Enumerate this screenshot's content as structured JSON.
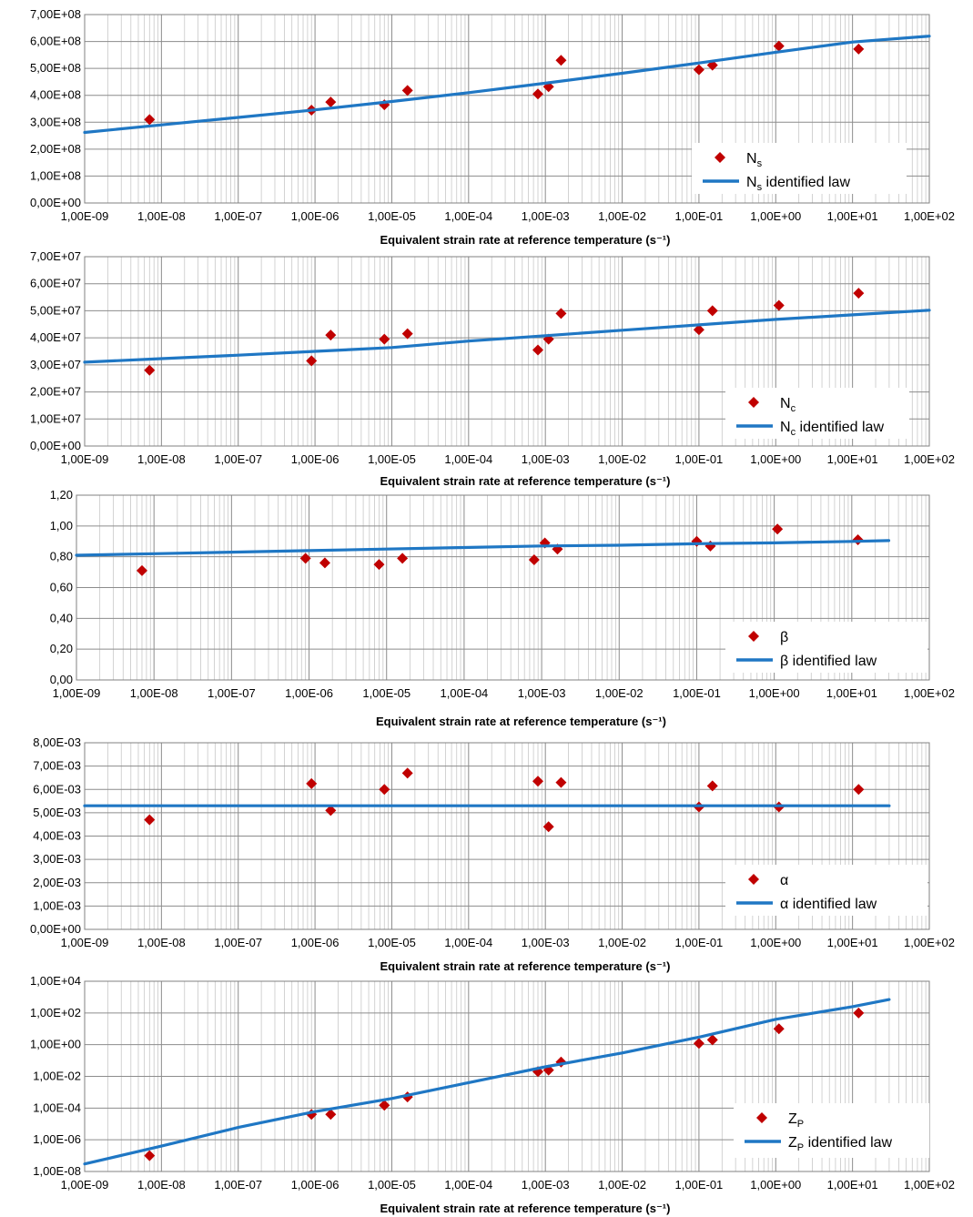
{
  "chart_data": [
    {
      "type": "scatter",
      "xscale": "log",
      "xlim": [
        1e-09,
        100
      ],
      "ylim": [
        0,
        700000000
      ],
      "yscale": "linear",
      "grid": true,
      "legend_position": "bottom-right",
      "xlabel": "Equivalent strain rate at reference temperature (s⁻¹)",
      "x_tick_labels": [
        "1,00E-09",
        "1,00E-08",
        "1,00E-07",
        "1,00E-06",
        "1,00E-05",
        "1,00E-04",
        "1,00E-03",
        "1,00E-02",
        "1,00E-01",
        "1,00E+00",
        "1,00E+01",
        "1,00E+02"
      ],
      "y_tick_labels": [
        "0,00E+00",
        "1,00E+08",
        "2,00E+08",
        "3,00E+08",
        "4,00E+08",
        "5,00E+08",
        "6,00E+08",
        "7,00E+08"
      ],
      "series": [
        {
          "name": "N",
          "name_sub": "s",
          "kind": "points",
          "color": "#c00000",
          "x": [
            7e-09,
            9e-07,
            1.6e-06,
            8e-06,
            1.6e-05,
            0.0008,
            0.0011,
            0.0016,
            0.1,
            0.15,
            1.1,
            12
          ],
          "y": [
            310000000,
            345000000,
            375000000,
            365000000,
            418000000,
            405000000,
            432000000,
            530000000,
            495000000,
            512000000,
            583000000,
            572000000
          ]
        },
        {
          "name": "N",
          "name_sub": "s",
          "name_suffix": " identified law",
          "kind": "line",
          "color": "#1f77c4",
          "x": [
            1e-09,
            1e-08,
            1e-07,
            1e-06,
            1e-05,
            0.0001,
            0.001,
            0.01,
            0.1,
            1,
            10,
            100
          ],
          "y": [
            262000000,
            290000000,
            318000000,
            346000000,
            377000000,
            410000000,
            445000000,
            482000000,
            520000000,
            560000000,
            598000000,
            620000000
          ]
        }
      ]
    },
    {
      "type": "scatter",
      "xscale": "log",
      "xlim": [
        1e-09,
        100
      ],
      "ylim": [
        0,
        70000000
      ],
      "yscale": "linear",
      "grid": true,
      "legend_position": "bottom-right",
      "xlabel": "Equivalent strain rate at reference temperature (s⁻¹)",
      "x_tick_labels": [
        "1,00E-09",
        "1,00E-08",
        "1,00E-07",
        "1,00E-06",
        "1,00E-05",
        "1,00E-04",
        "1,00E-03",
        "1,00E-02",
        "1,00E-01",
        "1,00E+00",
        "1,00E+01",
        "1,00E+02"
      ],
      "y_tick_labels": [
        "0,00E+00",
        "1,00E+07",
        "2,00E+07",
        "3,00E+07",
        "4,00E+07",
        "5,00E+07",
        "6,00E+07",
        "7,00E+07"
      ],
      "series": [
        {
          "name": "N",
          "name_sub": "c",
          "kind": "points",
          "color": "#c00000",
          "x": [
            7e-09,
            9e-07,
            1.6e-06,
            8e-06,
            1.6e-05,
            0.0008,
            0.0011,
            0.0016,
            0.1,
            0.15,
            1.1,
            12
          ],
          "y": [
            28000000,
            31500000,
            41000000,
            39500000,
            41500000,
            35500000,
            39500000,
            49000000,
            43000000,
            50000000,
            52000000,
            56500000
          ]
        },
        {
          "name": "N",
          "name_sub": "c",
          "name_suffix": " identified law",
          "kind": "line",
          "color": "#1f77c4",
          "x": [
            1e-09,
            1e-08,
            1e-07,
            1e-06,
            1e-05,
            0.0001,
            0.001,
            0.01,
            0.1,
            1,
            10,
            100
          ],
          "y": [
            31000000,
            32300000,
            33600000,
            35000000,
            36400000,
            38800000,
            40800000,
            42800000,
            44800000,
            46800000,
            48500000,
            50200000
          ]
        }
      ]
    },
    {
      "type": "scatter",
      "xscale": "log",
      "xlim": [
        1e-09,
        100
      ],
      "ylim": [
        0,
        1.2
      ],
      "yscale": "linear",
      "grid": true,
      "legend_position": "bottom-right",
      "xlabel": "Equivalent strain rate at reference temperature (s⁻¹)",
      "x_tick_labels": [
        "1,00E-09",
        "1,00E-08",
        "1,00E-07",
        "1,00E-06",
        "1,00E-05",
        "1,00E-04",
        "1,00E-03",
        "1,00E-02",
        "1,00E-01",
        "1,00E+00",
        "1,00E+01",
        "1,00E+02"
      ],
      "y_tick_labels": [
        "0,00",
        "0,20",
        "0,40",
        "0,60",
        "0,80",
        "1,00",
        "1,20"
      ],
      "series": [
        {
          "name": "β",
          "kind": "points",
          "color": "#c00000",
          "x": [
            7e-09,
            9e-07,
            1.6e-06,
            8e-06,
            1.6e-05,
            0.0008,
            0.0011,
            0.0016,
            0.1,
            0.15,
            1.1,
            12
          ],
          "y": [
            0.71,
            0.79,
            0.76,
            0.75,
            0.79,
            0.78,
            0.89,
            0.85,
            0.9,
            0.87,
            0.98,
            0.91
          ]
        },
        {
          "name": "β",
          "name_suffix": " identified law",
          "kind": "line",
          "color": "#1f77c4",
          "x": [
            1e-09,
            1e-08,
            1e-07,
            1e-06,
            1e-05,
            0.0001,
            0.001,
            0.01,
            0.1,
            1,
            10,
            30
          ],
          "y": [
            0.81,
            0.82,
            0.83,
            0.84,
            0.85,
            0.86,
            0.87,
            0.875,
            0.885,
            0.89,
            0.9,
            0.905
          ]
        }
      ]
    },
    {
      "type": "scatter",
      "xscale": "log",
      "xlim": [
        1e-09,
        100
      ],
      "ylim": [
        0,
        0.008
      ],
      "yscale": "linear",
      "grid": true,
      "legend_position": "bottom-right",
      "xlabel": "Equivalent strain rate at reference temperature (s⁻¹)",
      "x_tick_labels": [
        "1,00E-09",
        "1,00E-08",
        "1,00E-07",
        "1,00E-06",
        "1,00E-05",
        "1,00E-04",
        "1,00E-03",
        "1,00E-02",
        "1,00E-01",
        "1,00E+00",
        "1,00E+01",
        "1,00E+02"
      ],
      "y_tick_labels": [
        "0,00E+00",
        "1,00E-03",
        "2,00E-03",
        "3,00E-03",
        "4,00E-03",
        "5,00E-03",
        "6,00E-03",
        "7,00E-03",
        "8,00E-03"
      ],
      "series": [
        {
          "name": "α",
          "kind": "points",
          "color": "#c00000",
          "x": [
            7e-09,
            9e-07,
            1.6e-06,
            8e-06,
            1.6e-05,
            0.0008,
            0.0011,
            0.0016,
            0.1,
            0.15,
            1.1,
            12
          ],
          "y": [
            0.0047,
            0.00625,
            0.0051,
            0.006,
            0.0067,
            0.00635,
            0.0044,
            0.0063,
            0.00525,
            0.00615,
            0.00525,
            0.006
          ]
        },
        {
          "name": "α",
          "name_suffix": " identified law",
          "kind": "line",
          "color": "#1f77c4",
          "x": [
            1e-09,
            30
          ],
          "y": [
            0.0053,
            0.0053
          ]
        }
      ]
    },
    {
      "type": "scatter",
      "xscale": "log",
      "xlim": [
        1e-09,
        100
      ],
      "ylim": [
        1e-08,
        10000
      ],
      "yscale": "log",
      "grid": true,
      "legend_position": "bottom-right",
      "xlabel": "Equivalent strain rate at reference temperature (s⁻¹)",
      "x_tick_labels": [
        "1,00E-09",
        "1,00E-08",
        "1,00E-07",
        "1,00E-06",
        "1,00E-05",
        "1,00E-04",
        "1,00E-03",
        "1,00E-02",
        "1,00E-01",
        "1,00E+00",
        "1,00E+01",
        "1,00E+02"
      ],
      "y_tick_labels": [
        "1,00E-08",
        "1,00E-06",
        "1,00E-04",
        "1,00E-02",
        "1,00E+00",
        "1,00E+02",
        "1,00E+04"
      ],
      "series": [
        {
          "name": "Z",
          "name_sub": "P",
          "kind": "points",
          "color": "#c00000",
          "x": [
            7e-09,
            9e-07,
            1.6e-06,
            8e-06,
            1.6e-05,
            0.0008,
            0.0011,
            0.0016,
            0.1,
            0.15,
            1.1,
            12
          ],
          "y": [
            1e-07,
            4e-05,
            4e-05,
            0.00015,
            0.0005,
            0.02,
            0.025,
            0.08,
            1.2,
            2,
            10,
            100
          ]
        },
        {
          "name": "Z",
          "name_sub": "P",
          "name_suffix": " identified law",
          "kind": "line",
          "color": "#1f77c4",
          "x": [
            1e-09,
            1e-08,
            1e-07,
            1e-06,
            1e-05,
            0.0001,
            0.001,
            0.01,
            0.1,
            1,
            10,
            30
          ],
          "y": [
            3e-08,
            4e-07,
            6e-06,
            6e-05,
            0.0004,
            0.004,
            0.04,
            0.3,
            3,
            40,
            250,
            700
          ]
        }
      ]
    }
  ]
}
